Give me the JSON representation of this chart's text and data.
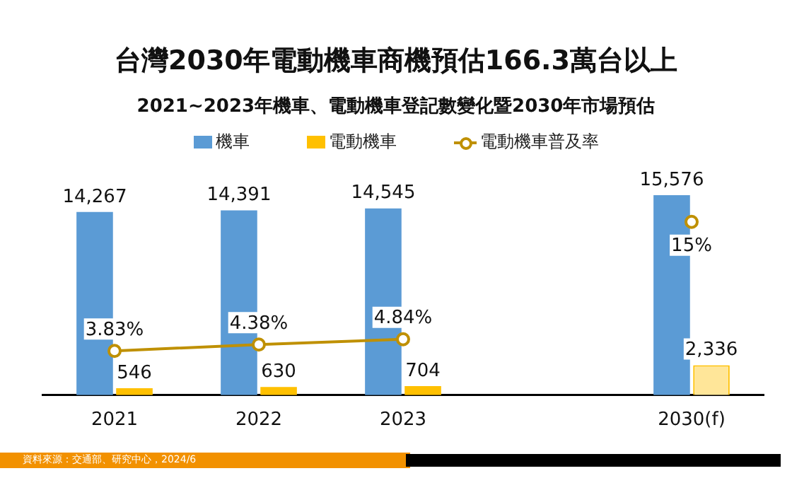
{
  "chart_data": {
    "type": "bar",
    "title": "台灣2030年電動機車商機預估166.3萬台以上",
    "subtitle": "2021~2023年機車、電動機車登記數變化暨2030年市場預估",
    "categories": [
      "2021",
      "2022",
      "2023",
      null,
      "2030(f)"
    ],
    "series": [
      {
        "name": "機車",
        "color": "#5b9bd5",
        "values": [
          14267,
          14391,
          14545,
          null,
          15576
        ],
        "value_labels": [
          "14,267",
          "14,391",
          "14,545",
          null,
          "15,576"
        ]
      },
      {
        "name": "電動機車",
        "color": "#ffc000",
        "colors": [
          "#ffc000",
          "#ffc000",
          "#ffc000",
          null,
          "#ffe699"
        ],
        "values": [
          546,
          630,
          704,
          null,
          2336
        ],
        "value_labels": [
          "546",
          "630",
          "704",
          null,
          "2,336"
        ]
      },
      {
        "name": "電動機車普及率",
        "type": "line",
        "axis": "y2",
        "color": "#bf9000",
        "marker": "circle",
        "values": [
          3.83,
          4.38,
          4.84,
          null,
          15
        ],
        "value_labels": [
          "3.83%",
          "4.38%",
          "4.84%",
          null,
          "15%"
        ]
      }
    ],
    "legend": "top",
    "grid": false,
    "tick_labels": "x",
    "annotations": [
      "資料來源：交通部、研究中心，2024/6"
    ]
  }
}
